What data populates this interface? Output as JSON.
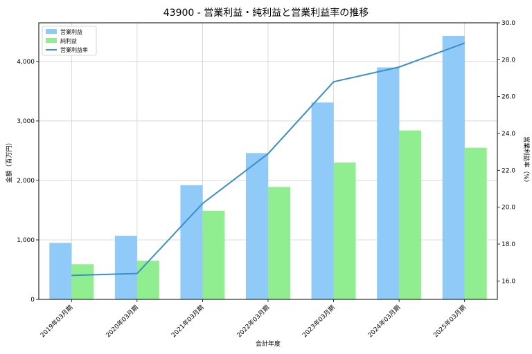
{
  "chart_data": {
    "type": "bar",
    "title": "43900 - 営業利益・純利益と営業利益率の推移",
    "xlabel": "会計年度",
    "ylabel_left": "金額（百万円）",
    "ylabel_right": "営業利益率（%）",
    "categories": [
      "2019年03月期",
      "2020年03月期",
      "2021年03月期",
      "2022年03月期",
      "2023年03月期",
      "2024年03月期",
      "2025年03月期"
    ],
    "series": [
      {
        "name": "営業利益",
        "kind": "bar",
        "axis": "left",
        "color": "#90caf9",
        "values": [
          950,
          1070,
          1920,
          2460,
          3310,
          3900,
          4430
        ]
      },
      {
        "name": "純利益",
        "kind": "bar",
        "axis": "left",
        "color": "#90ee90",
        "values": [
          590,
          650,
          1490,
          1890,
          2300,
          2840,
          2550
        ]
      },
      {
        "name": "営業利益率",
        "kind": "line",
        "axis": "right",
        "color": "#3a8fc6",
        "values": [
          16.3,
          16.4,
          20.2,
          22.9,
          26.8,
          27.6,
          28.9
        ]
      }
    ],
    "ylim_left": [
      0,
      4650
    ],
    "yticks_left": [
      0,
      1000,
      2000,
      3000,
      4000
    ],
    "yticklabels_left": [
      "0",
      "1,000",
      "2,000",
      "3,000",
      "4,000"
    ],
    "ylim_right": [
      15,
      30
    ],
    "yticks_right": [
      16,
      18,
      20,
      22,
      24,
      26,
      28,
      30
    ],
    "yticklabels_right": [
      "16.0",
      "18.0",
      "20.0",
      "22.0",
      "24.0",
      "26.0",
      "28.0",
      "30.0"
    ],
    "grid": true,
    "legend_position": "top-left"
  }
}
